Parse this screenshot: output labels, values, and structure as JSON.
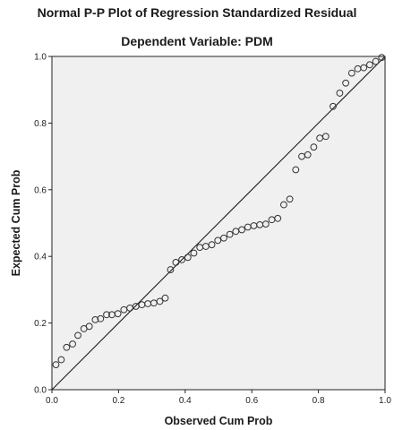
{
  "chart_data": {
    "type": "scatter",
    "title": "Normal P-P Plot of Regression Standardized Residual",
    "subtitle": "Dependent Variable: PDM",
    "xlabel": "Observed Cum Prob",
    "ylabel": "Expected Cum Prob",
    "xlim": [
      0,
      1
    ],
    "ylim": [
      0,
      1
    ],
    "xticks": [
      "0.0",
      "0.2",
      "0.4",
      "0.6",
      "0.8",
      "1.0"
    ],
    "yticks": [
      "0.0",
      "0.2",
      "0.4",
      "0.6",
      "0.8",
      "1.0"
    ],
    "reference_line": {
      "from": [
        0,
        0
      ],
      "to": [
        1,
        1
      ]
    },
    "grid": false,
    "background_color": "#f0f0f0",
    "marker": "open-circle",
    "points": [
      {
        "x": 0.012,
        "y": 0.075
      },
      {
        "x": 0.028,
        "y": 0.09
      },
      {
        "x": 0.044,
        "y": 0.127
      },
      {
        "x": 0.062,
        "y": 0.137
      },
      {
        "x": 0.078,
        "y": 0.163
      },
      {
        "x": 0.096,
        "y": 0.183
      },
      {
        "x": 0.112,
        "y": 0.19
      },
      {
        "x": 0.13,
        "y": 0.21
      },
      {
        "x": 0.146,
        "y": 0.213
      },
      {
        "x": 0.164,
        "y": 0.225
      },
      {
        "x": 0.18,
        "y": 0.225
      },
      {
        "x": 0.198,
        "y": 0.228
      },
      {
        "x": 0.216,
        "y": 0.24
      },
      {
        "x": 0.234,
        "y": 0.245
      },
      {
        "x": 0.252,
        "y": 0.25
      },
      {
        "x": 0.27,
        "y": 0.255
      },
      {
        "x": 0.288,
        "y": 0.258
      },
      {
        "x": 0.306,
        "y": 0.26
      },
      {
        "x": 0.324,
        "y": 0.265
      },
      {
        "x": 0.34,
        "y": 0.275
      },
      {
        "x": 0.356,
        "y": 0.36
      },
      {
        "x": 0.372,
        "y": 0.382
      },
      {
        "x": 0.39,
        "y": 0.39
      },
      {
        "x": 0.408,
        "y": 0.397
      },
      {
        "x": 0.426,
        "y": 0.41
      },
      {
        "x": 0.444,
        "y": 0.427
      },
      {
        "x": 0.462,
        "y": 0.43
      },
      {
        "x": 0.48,
        "y": 0.435
      },
      {
        "x": 0.498,
        "y": 0.448
      },
      {
        "x": 0.516,
        "y": 0.455
      },
      {
        "x": 0.534,
        "y": 0.466
      },
      {
        "x": 0.552,
        "y": 0.475
      },
      {
        "x": 0.57,
        "y": 0.48
      },
      {
        "x": 0.588,
        "y": 0.488
      },
      {
        "x": 0.606,
        "y": 0.492
      },
      {
        "x": 0.624,
        "y": 0.495
      },
      {
        "x": 0.642,
        "y": 0.497
      },
      {
        "x": 0.66,
        "y": 0.51
      },
      {
        "x": 0.678,
        "y": 0.514
      },
      {
        "x": 0.696,
        "y": 0.555
      },
      {
        "x": 0.714,
        "y": 0.572
      },
      {
        "x": 0.732,
        "y": 0.66
      },
      {
        "x": 0.75,
        "y": 0.7
      },
      {
        "x": 0.768,
        "y": 0.705
      },
      {
        "x": 0.786,
        "y": 0.728
      },
      {
        "x": 0.804,
        "y": 0.755
      },
      {
        "x": 0.822,
        "y": 0.76
      },
      {
        "x": 0.844,
        "y": 0.85
      },
      {
        "x": 0.864,
        "y": 0.89
      },
      {
        "x": 0.882,
        "y": 0.92
      },
      {
        "x": 0.9,
        "y": 0.95
      },
      {
        "x": 0.918,
        "y": 0.963
      },
      {
        "x": 0.936,
        "y": 0.966
      },
      {
        "x": 0.954,
        "y": 0.975
      },
      {
        "x": 0.972,
        "y": 0.985
      },
      {
        "x": 0.99,
        "y": 0.997
      }
    ]
  }
}
